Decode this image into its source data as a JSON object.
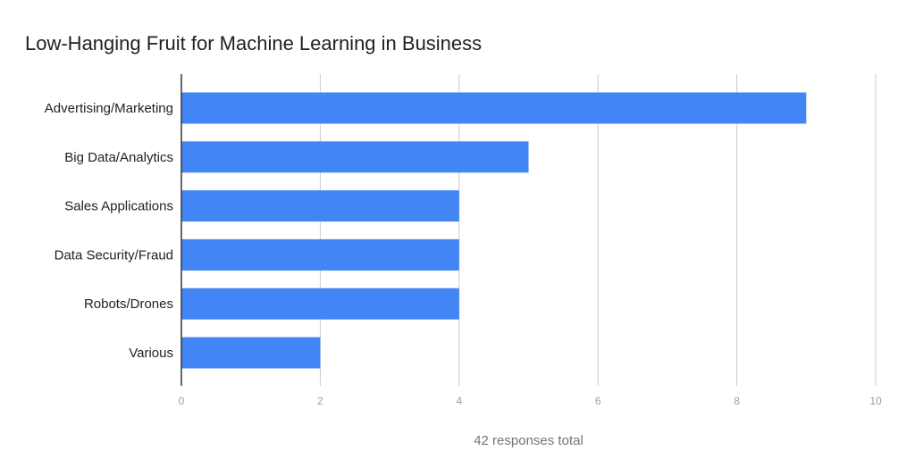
{
  "chart_data": {
    "type": "bar",
    "orientation": "horizontal",
    "title": "Low-Hanging Fruit for Machine Learning in Business",
    "categories": [
      "Advertising/Marketing",
      "Big Data/Analytics",
      "Sales Applications",
      "Data Security/Fraud",
      "Robots/Drones",
      "Various"
    ],
    "values": [
      9,
      5,
      4,
      4,
      4,
      2
    ],
    "xlabel": "42 responses total",
    "ylabel": "",
    "xlim": [
      0,
      10
    ],
    "xticks": [
      0,
      2,
      4,
      6,
      8,
      10
    ],
    "grid": true,
    "legend": "none",
    "colors": {
      "bar": "#4285f4",
      "grid": "#cccccc",
      "axis": "#333333"
    }
  }
}
